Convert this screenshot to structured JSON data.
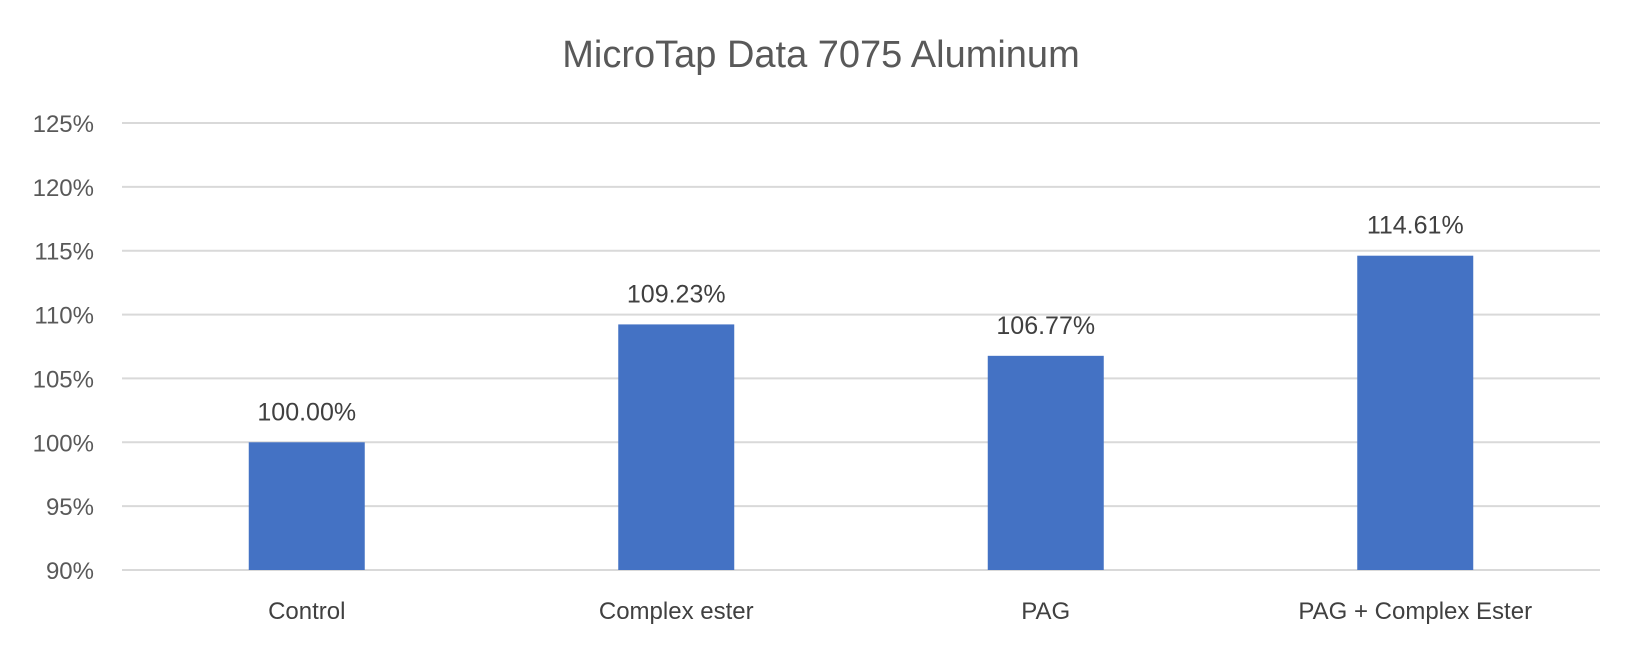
{
  "chart_data": {
    "type": "bar",
    "title": "MicroTap Data 7075 Aluminum",
    "categories": [
      "Control",
      "Complex ester",
      "PAG",
      "PAG + Complex Ester"
    ],
    "values": [
      100.0,
      109.23,
      106.77,
      114.61
    ],
    "data_labels": [
      "100.00%",
      "109.23%",
      "106.77%",
      "114.61%"
    ],
    "yticks": [
      90,
      95,
      100,
      105,
      110,
      115,
      120,
      125
    ],
    "ytick_labels": [
      "90%",
      "95%",
      "100%",
      "105%",
      "110%",
      "115%",
      "120%",
      "125%"
    ],
    "ylim": [
      90,
      125
    ],
    "grid": true,
    "legend": "none",
    "bar_color": "#4472c4"
  }
}
